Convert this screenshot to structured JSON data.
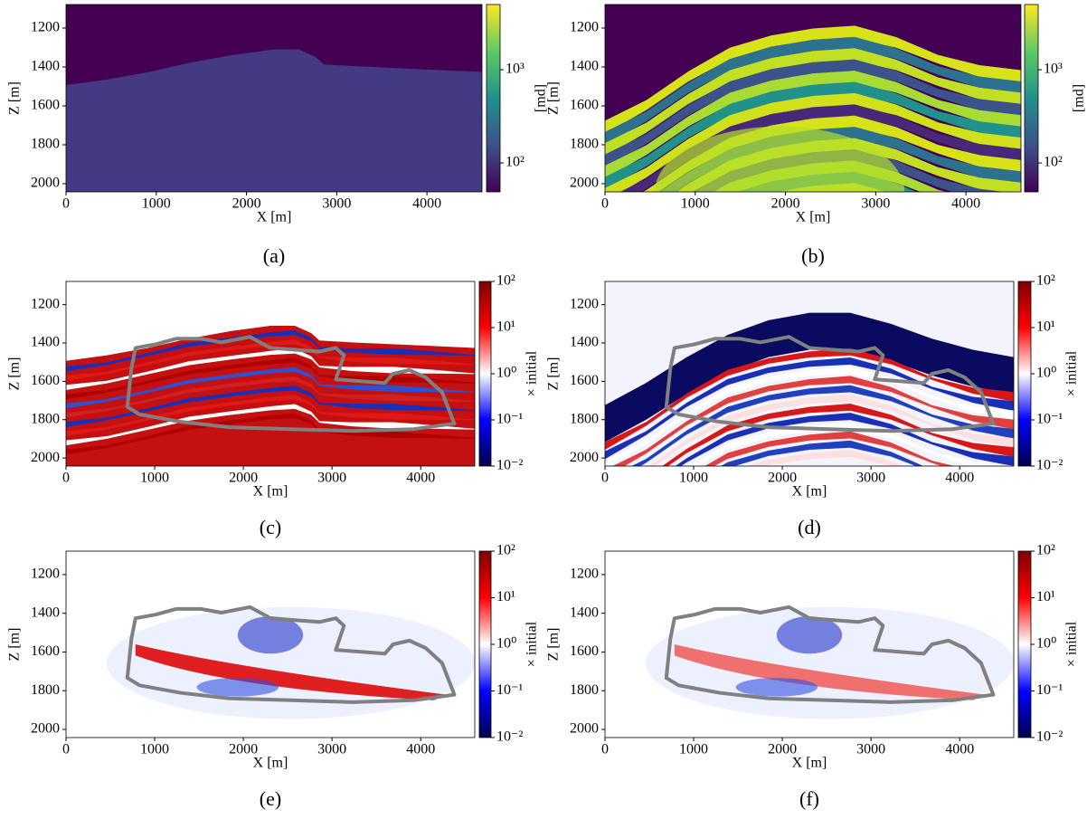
{
  "chart_data": [
    {
      "type": "heatmap",
      "caption": "(a)",
      "xlabel": "X [m]",
      "ylabel": "Z [m]",
      "xlim": [
        0,
        4610
      ],
      "ylim": [
        2042,
        1079
      ],
      "xticks": [
        0,
        1000,
        2000,
        3000,
        4000
      ],
      "yticks": [
        1200,
        1400,
        1600,
        1800,
        2000
      ],
      "colorbar": {
        "label": "[md]",
        "colormap": "viridis",
        "scale": "log",
        "lim": [
          49,
          5000
        ],
        "ticks": [
          {
            "value": 100,
            "label": "10²"
          },
          {
            "value": 1000,
            "label": "10³"
          }
        ]
      }
    },
    {
      "type": "heatmap",
      "caption": "(b)",
      "xlabel": "X [m]",
      "ylabel": "Z [m]",
      "xlim": [
        0,
        4610
      ],
      "ylim": [
        2042,
        1079
      ],
      "xticks": [
        0,
        1000,
        2000,
        3000,
        4000
      ],
      "yticks": [
        1200,
        1400,
        1600,
        1800,
        2000
      ],
      "colorbar": {
        "label": "[md]",
        "colormap": "viridis",
        "scale": "log",
        "lim": [
          49,
          5000
        ],
        "ticks": [
          {
            "value": 100,
            "label": "10²"
          },
          {
            "value": 1000,
            "label": "10³"
          }
        ]
      }
    },
    {
      "type": "heatmap",
      "caption": "(c)",
      "xlabel": "X [m]",
      "ylabel": "Z [m]",
      "xlim": [
        0,
        4610
      ],
      "ylim": [
        2042,
        1079
      ],
      "xticks": [
        0,
        1000,
        2000,
        3000,
        4000
      ],
      "yticks": [
        1200,
        1400,
        1600,
        1800,
        2000
      ],
      "outline_color": "#808080",
      "colorbar": {
        "label": "× initial",
        "colormap": "seismic",
        "scale": "log",
        "lim": [
          0.01,
          100
        ],
        "ticks": [
          {
            "value": 0.01,
            "label": "10⁻²"
          },
          {
            "value": 0.1,
            "label": "10⁻¹"
          },
          {
            "value": 1,
            "label": "10⁰"
          },
          {
            "value": 10,
            "label": "10¹"
          },
          {
            "value": 100,
            "label": "10²"
          }
        ]
      }
    },
    {
      "type": "heatmap",
      "caption": "(d)",
      "xlabel": "X [m]",
      "ylabel": "Z [m]",
      "xlim": [
        0,
        4610
      ],
      "ylim": [
        2042,
        1079
      ],
      "xticks": [
        0,
        1000,
        2000,
        3000,
        4000
      ],
      "yticks": [
        1200,
        1400,
        1600,
        1800,
        2000
      ],
      "outline_color": "#808080",
      "colorbar": {
        "label": "× initial",
        "colormap": "seismic",
        "scale": "log",
        "lim": [
          0.01,
          100
        ],
        "ticks": [
          {
            "value": 0.01,
            "label": "10⁻²"
          },
          {
            "value": 0.1,
            "label": "10⁻¹"
          },
          {
            "value": 1,
            "label": "10⁰"
          },
          {
            "value": 10,
            "label": "10¹"
          },
          {
            "value": 100,
            "label": "10²"
          }
        ]
      }
    },
    {
      "type": "heatmap",
      "caption": "(e)",
      "xlabel": "X [m]",
      "ylabel": "Z [m]",
      "xlim": [
        0,
        4610
      ],
      "ylim": [
        2042,
        1079
      ],
      "xticks": [
        0,
        1000,
        2000,
        3000,
        4000
      ],
      "yticks": [
        1200,
        1400,
        1600,
        1800,
        2000
      ],
      "outline_color": "#808080",
      "colorbar": {
        "label": "× initial",
        "colormap": "seismic",
        "scale": "log",
        "lim": [
          0.01,
          100
        ],
        "ticks": [
          {
            "value": 0.01,
            "label": "10⁻²"
          },
          {
            "value": 0.1,
            "label": "10⁻¹"
          },
          {
            "value": 1,
            "label": "10⁰"
          },
          {
            "value": 10,
            "label": "10¹"
          },
          {
            "value": 100,
            "label": "10²"
          }
        ]
      }
    },
    {
      "type": "heatmap",
      "caption": "(f)",
      "xlabel": "X [m]",
      "ylabel": "Z [m]",
      "xlim": [
        0,
        4610
      ],
      "ylim": [
        2042,
        1079
      ],
      "xticks": [
        0,
        1000,
        2000,
        3000,
        4000
      ],
      "yticks": [
        1200,
        1400,
        1600,
        1800,
        2000
      ],
      "outline_color": "#808080",
      "colorbar": {
        "label": "× initial",
        "colormap": "seismic",
        "scale": "log",
        "lim": [
          0.01,
          100
        ],
        "ticks": [
          {
            "value": 0.01,
            "label": "10⁻²"
          },
          {
            "value": 0.1,
            "label": "10⁻¹"
          },
          {
            "value": 1,
            "label": "10⁰"
          },
          {
            "value": 10,
            "label": "10¹"
          },
          {
            "value": 100,
            "label": "10²"
          }
        ]
      }
    }
  ]
}
